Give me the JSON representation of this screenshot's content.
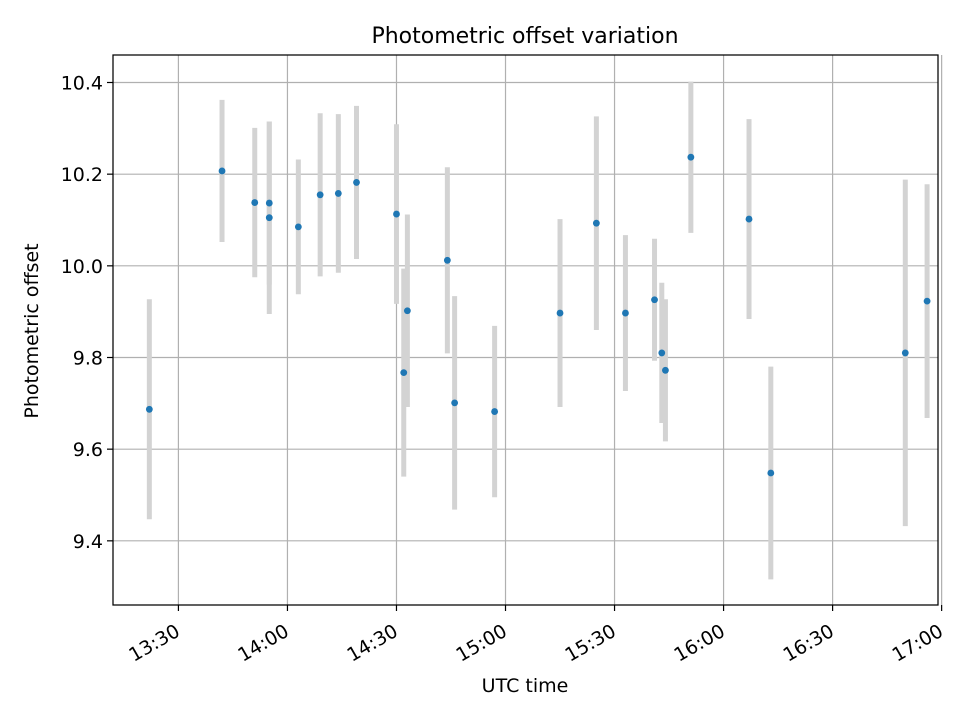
{
  "chart_data": {
    "type": "scatter",
    "title": "Photometric offset variation",
    "xlabel": "UTC time",
    "ylabel": "Photometric offset",
    "x_is_time": true,
    "xlim": [
      "13:12",
      "16:59"
    ],
    "ylim": [
      9.26,
      10.46
    ],
    "x_ticks": [
      "13:30",
      "14:00",
      "14:30",
      "15:00",
      "15:30",
      "16:00",
      "16:30",
      "17:00"
    ],
    "y_ticks": [
      "9.4",
      "9.6",
      "9.8",
      "10.0",
      "10.2",
      "10.4"
    ],
    "grid": true,
    "colors": {
      "point": "#1f77b4",
      "errorbar": "#d3d3d3",
      "grid": "#b0b0b0"
    },
    "series": [
      {
        "points": [
          {
            "t": "13:22",
            "y": 9.687,
            "err": 0.24
          },
          {
            "t": "13:42",
            "y": 10.207,
            "err": 0.155
          },
          {
            "t": "13:51",
            "y": 10.138,
            "err": 0.163
          },
          {
            "t": "13:55",
            "y": 10.105,
            "err": 0.21
          },
          {
            "t": "13:55",
            "y": 10.137,
            "err": 0.178
          },
          {
            "t": "14:03",
            "y": 10.085,
            "err": 0.147
          },
          {
            "t": "14:09",
            "y": 10.155,
            "err": 0.178
          },
          {
            "t": "14:14",
            "y": 10.158,
            "err": 0.173
          },
          {
            "t": "14:19",
            "y": 10.182,
            "err": 0.167
          },
          {
            "t": "14:30",
            "y": 10.113,
            "err": 0.196
          },
          {
            "t": "14:32",
            "y": 9.767,
            "err": 0.227
          },
          {
            "t": "14:33",
            "y": 9.902,
            "err": 0.21
          },
          {
            "t": "14:44",
            "y": 10.012,
            "err": 0.203
          },
          {
            "t": "14:46",
            "y": 9.701,
            "err": 0.233
          },
          {
            "t": "14:57",
            "y": 9.682,
            "err": 0.187
          },
          {
            "t": "15:15",
            "y": 9.897,
            "err": 0.205
          },
          {
            "t": "15:25",
            "y": 10.093,
            "err": 0.233
          },
          {
            "t": "15:33",
            "y": 9.897,
            "err": 0.17
          },
          {
            "t": "15:41",
            "y": 9.926,
            "err": 0.133
          },
          {
            "t": "15:43",
            "y": 9.81,
            "err": 0.153
          },
          {
            "t": "15:44",
            "y": 9.772,
            "err": 0.155
          },
          {
            "t": "15:51",
            "y": 10.237,
            "err": 0.165
          },
          {
            "t": "16:07",
            "y": 10.102,
            "err": 0.218
          },
          {
            "t": "16:13",
            "y": 9.548,
            "err": 0.232
          },
          {
            "t": "16:50",
            "y": 9.81,
            "err": 0.378
          },
          {
            "t": "16:56",
            "y": 9.923,
            "err": 0.255
          }
        ]
      }
    ]
  }
}
